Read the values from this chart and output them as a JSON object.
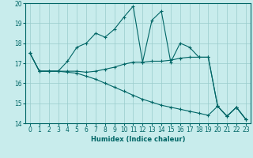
{
  "xlabel": "Humidex (Indice chaleur)",
  "xlim": [
    -0.5,
    23.5
  ],
  "ylim": [
    14,
    20
  ],
  "yticks": [
    14,
    15,
    16,
    17,
    18,
    19,
    20
  ],
  "xticks": [
    0,
    1,
    2,
    3,
    4,
    5,
    6,
    7,
    8,
    9,
    10,
    11,
    12,
    13,
    14,
    15,
    16,
    17,
    18,
    19,
    20,
    21,
    22,
    23
  ],
  "bg_color": "#c8ecec",
  "grid_color": "#99cccc",
  "line_color": "#006666",
  "line1_y": [
    17.5,
    16.6,
    16.6,
    16.6,
    17.1,
    17.8,
    18.0,
    18.5,
    18.3,
    18.7,
    19.3,
    19.85,
    17.05,
    19.15,
    19.6,
    17.05,
    18.0,
    17.8,
    17.3,
    17.3,
    14.85,
    14.35,
    14.8,
    14.2
  ],
  "line2_y": [
    17.5,
    16.6,
    16.6,
    16.6,
    16.6,
    16.6,
    16.55,
    16.6,
    16.7,
    16.8,
    16.95,
    17.05,
    17.05,
    17.1,
    17.1,
    17.15,
    17.25,
    17.3,
    17.3,
    17.3,
    14.85,
    14.35,
    14.8,
    14.2
  ],
  "line3_y": [
    17.5,
    16.6,
    16.6,
    16.6,
    16.55,
    16.5,
    16.35,
    16.2,
    16.0,
    15.8,
    15.6,
    15.4,
    15.2,
    15.05,
    14.9,
    14.8,
    14.7,
    14.6,
    14.5,
    14.4,
    14.85,
    14.35,
    14.8,
    14.2
  ]
}
